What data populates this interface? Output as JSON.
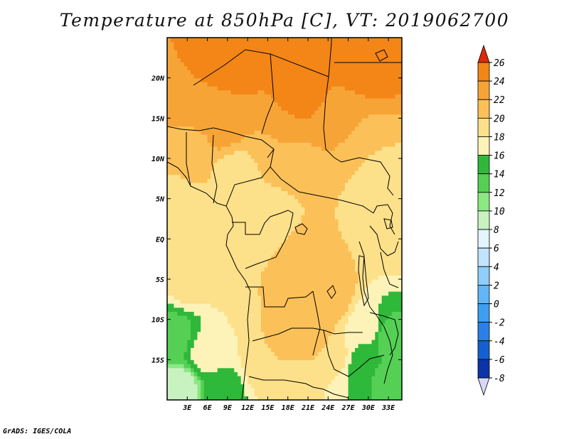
{
  "chart_data": {
    "type": "heatmap",
    "title": "Temperature at 850hPa [C], VT: 2019062700",
    "variable": "Temperature at 850hPa",
    "units": "C",
    "valid_time": "2019062700",
    "x_range": [
      0,
      35
    ],
    "y_range": [
      -20,
      25
    ],
    "x_ticks": [
      {
        "value": 3,
        "label": "3E"
      },
      {
        "value": 6,
        "label": "6E"
      },
      {
        "value": 9,
        "label": "9E"
      },
      {
        "value": 12,
        "label": "12E"
      },
      {
        "value": 15,
        "label": "15E"
      },
      {
        "value": 18,
        "label": "18E"
      },
      {
        "value": 21,
        "label": "21E"
      },
      {
        "value": 24,
        "label": "24E"
      },
      {
        "value": 27,
        "label": "27E"
      },
      {
        "value": 30,
        "label": "30E"
      },
      {
        "value": 33,
        "label": "33E"
      }
    ],
    "y_ticks": [
      {
        "value": 20,
        "label": "20N"
      },
      {
        "value": 15,
        "label": "15N"
      },
      {
        "value": 10,
        "label": "10N"
      },
      {
        "value": 5,
        "label": "5N"
      },
      {
        "value": 0,
        "label": "EQ"
      },
      {
        "value": -5,
        "label": "5S"
      },
      {
        "value": -10,
        "label": "10S"
      },
      {
        "value": -15,
        "label": "15S"
      }
    ],
    "colorbar": {
      "levels": [
        -8,
        -6,
        -4,
        -2,
        0,
        2,
        4,
        6,
        8,
        10,
        12,
        14,
        16,
        18,
        20,
        22,
        24,
        26
      ],
      "labels": [
        "-8",
        "-6",
        "-4",
        "-2",
        "0",
        "2",
        "4",
        "6",
        "8",
        "10",
        "12",
        "14",
        "16",
        "18",
        "20",
        "22",
        "24",
        "26"
      ],
      "colors": [
        "#0a0a78",
        "#0c33a8",
        "#1560d0",
        "#2a80e8",
        "#3e9ef0",
        "#62b6f6",
        "#90cdfa",
        "#bfe4fb",
        "#e3f5fb",
        "#c8f2c0",
        "#8be882",
        "#55d055",
        "#2fb83a",
        "#fdf3b8",
        "#fde08a",
        "#fbc058",
        "#f7a437",
        "#f38617",
        "#ed5f0b",
        "#dc2a08"
      ],
      "under_color": "#d8d8f4",
      "over_color": "#dc2a08"
    },
    "field_points": [
      {
        "lon": 10,
        "lat": 23,
        "value": 26
      },
      {
        "lon": 30,
        "lat": 23,
        "value": 26
      },
      {
        "lon": 20,
        "lat": 18,
        "value": 25
      },
      {
        "lon": 5,
        "lat": 17,
        "value": 24
      },
      {
        "lon": 25,
        "lat": 14,
        "value": 23
      },
      {
        "lon": 8,
        "lat": 14,
        "value": 23
      },
      {
        "lon": 17,
        "lat": 12,
        "value": 22
      },
      {
        "lon": 4,
        "lat": 11,
        "value": 21
      },
      {
        "lon": 28,
        "lat": 10,
        "value": 20
      },
      {
        "lon": 10,
        "lat": 8,
        "value": 19
      },
      {
        "lon": 22,
        "lat": 7,
        "value": 20
      },
      {
        "lon": 32,
        "lat": 6,
        "value": 19
      },
      {
        "lon": 2,
        "lat": 4,
        "value": 19
      },
      {
        "lon": 15,
        "lat": 2,
        "value": 19
      },
      {
        "lon": 25,
        "lat": 2,
        "value": 20
      },
      {
        "lon": 33,
        "lat": 1,
        "value": 19
      },
      {
        "lon": 8,
        "lat": -2,
        "value": 20
      },
      {
        "lon": 20,
        "lat": -3,
        "value": 21
      },
      {
        "lon": 3,
        "lat": -5,
        "value": 19
      },
      {
        "lon": 24,
        "lat": -7,
        "value": 22
      },
      {
        "lon": 14,
        "lat": -7,
        "value": 20
      },
      {
        "lon": 20,
        "lat": -11,
        "value": 22
      },
      {
        "lon": 30,
        "lat": -11,
        "value": 17
      },
      {
        "lon": 33,
        "lat": -12,
        "value": 13
      },
      {
        "lon": 1,
        "lat": -12,
        "value": 13
      },
      {
        "lon": 6,
        "lat": -14,
        "value": 17
      },
      {
        "lon": 15,
        "lat": -15,
        "value": 20
      },
      {
        "lon": 24,
        "lat": -15,
        "value": 20
      },
      {
        "lon": 30,
        "lat": -16,
        "value": 14
      },
      {
        "lon": 33,
        "lat": -19,
        "value": 13
      },
      {
        "lon": 2,
        "lat": -19,
        "value": 8
      },
      {
        "lon": 8,
        "lat": -19,
        "value": 15
      },
      {
        "lon": 20,
        "lat": -19,
        "value": 19
      },
      {
        "lon": 27,
        "lat": -19,
        "value": 16
      }
    ]
  },
  "credit": "GrADS: IGES/COLA"
}
